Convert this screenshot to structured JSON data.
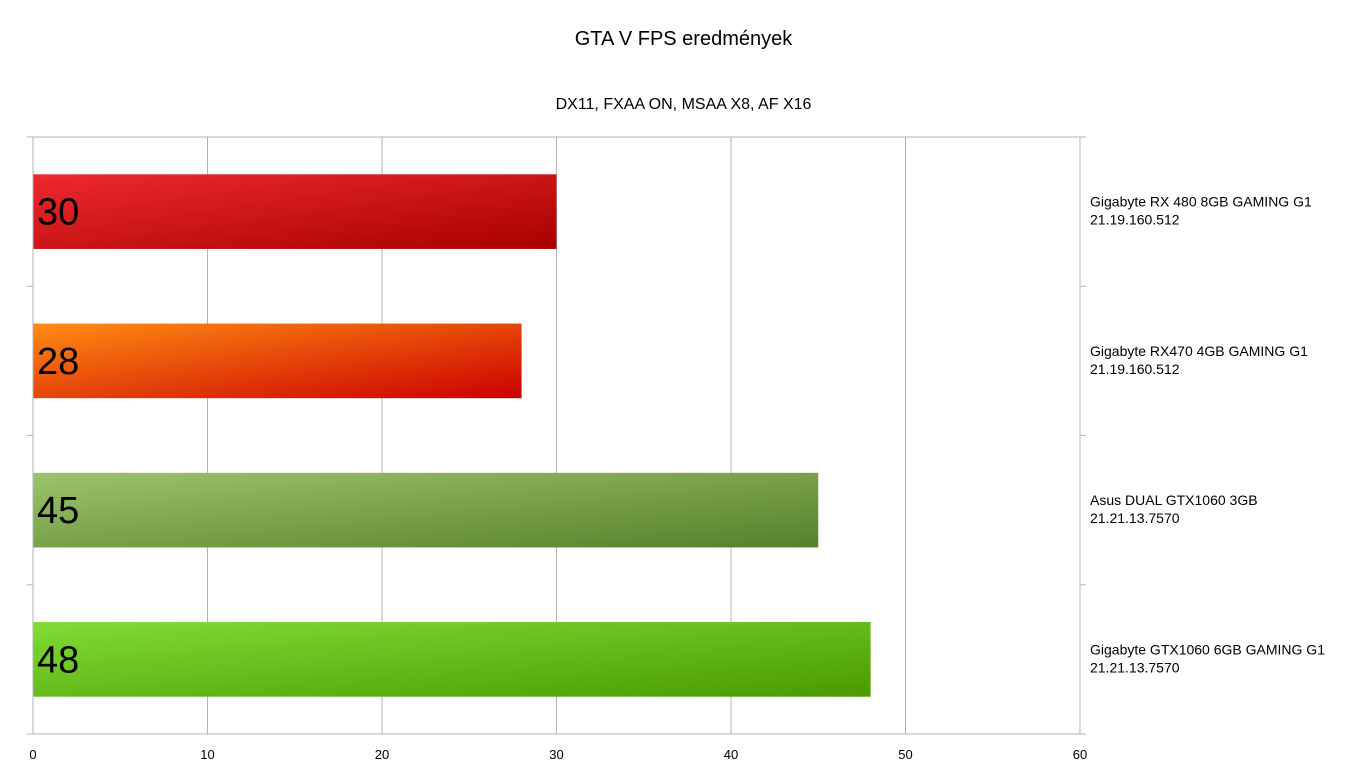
{
  "chart_data": {
    "type": "bar",
    "orientation": "horizontal",
    "title": "GTA V FPS eredmények",
    "subtitle": "DX11, FXAA ON, MSAA X8, AF X16",
    "xlim": [
      0,
      60
    ],
    "x_ticks": [
      0,
      10,
      20,
      30,
      40,
      50,
      60
    ],
    "grid": true,
    "category_axis_side": "right",
    "categories": [
      {
        "lines": [
          "Gigabyte RX 480 8GB GAMING G1",
          "21.19.160.512"
        ]
      },
      {
        "lines": [
          "Gigabyte RX470 4GB GAMING G1",
          " 21.19.160.512"
        ]
      },
      {
        "lines": [
          "Asus DUAL GTX1060 3GB",
          "21.21.13.7570"
        ]
      },
      {
        "lines": [
          "Gigabyte GTX1060 6GB GAMING G1",
          "21.21.13.7570"
        ]
      }
    ],
    "values": [
      30,
      28,
      45,
      48
    ],
    "bar_colors": [
      [
        "#ee2a2e",
        "#a80000"
      ],
      [
        "#ff8c13",
        "#cc0000"
      ],
      [
        "#9bc46a",
        "#56802a"
      ],
      [
        "#80dc35",
        "#4a9a00"
      ]
    ]
  }
}
